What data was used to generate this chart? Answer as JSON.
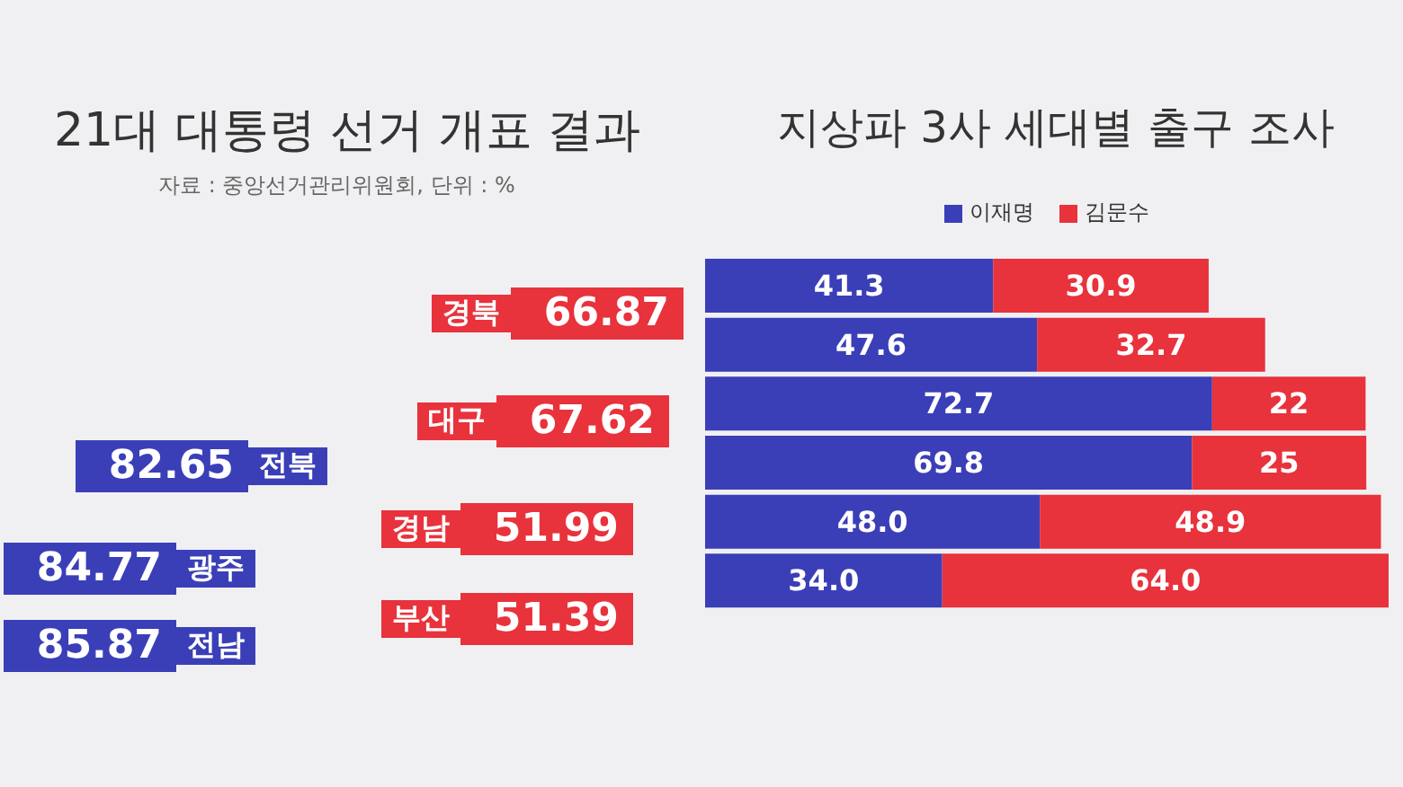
{
  "chart_data": [
    {
      "type": "other",
      "title": "21대 대통령 선거 개표 결과",
      "subtitle": "자료 : 중앙선거관리위원회, 단위 : %",
      "categories": [
        "경북",
        "대구",
        "경남",
        "부산",
        "전북",
        "광주",
        "전남"
      ],
      "values": [
        66.87,
        67.62,
        51.99,
        51.39,
        82.65,
        84.77,
        85.87
      ],
      "colors": [
        "#e8323c",
        "#e8323c",
        "#e8323c",
        "#e8323c",
        "#3a3fb8",
        "#3a3fb8",
        "#3a3fb8"
      ],
      "data_labels": true
    },
    {
      "type": "bar",
      "title": "지상파 3사 세대별 출구 조사",
      "orientation": "horizontal",
      "stacked": true,
      "categories": [
        null,
        null,
        null,
        null,
        null,
        null
      ],
      "legend": "top",
      "series": [
        {
          "name": "이재명",
          "color": "#3a3fb8",
          "values": [
            41.3,
            47.6,
            72.7,
            69.8,
            48.0,
            34.0
          ],
          "value_labels": [
            "41.3",
            "47.6",
            "72.7",
            "69.8",
            "48.0",
            "34.0"
          ]
        },
        {
          "name": "김문수",
          "color": "#e8323c",
          "values": [
            30.9,
            32.7,
            22,
            25,
            48.9,
            64.0
          ],
          "value_labels": [
            "30.9",
            "32.7",
            "22",
            "25",
            "48.9",
            "64.0"
          ]
        }
      ]
    }
  ]
}
